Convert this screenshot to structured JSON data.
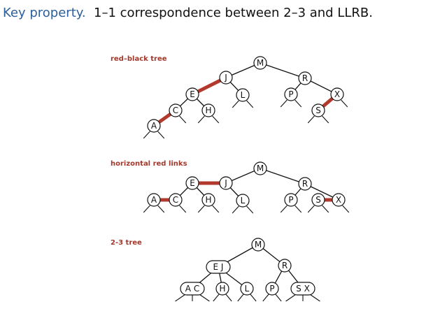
{
  "header": {
    "accent_text": "Key property.",
    "rest_text": "1–1 correspondence between 2–3 and LLRB."
  },
  "diagrams": [
    {
      "id": "red-black-tree",
      "label": "red–black tree",
      "nodes": [
        {
          "id": "M",
          "keys": "M"
        },
        {
          "id": "J",
          "keys": "J"
        },
        {
          "id": "R",
          "keys": "R"
        },
        {
          "id": "E",
          "keys": "E"
        },
        {
          "id": "L",
          "keys": "L"
        },
        {
          "id": "P",
          "keys": "P"
        },
        {
          "id": "X",
          "keys": "X"
        },
        {
          "id": "C",
          "keys": "C"
        },
        {
          "id": "H",
          "keys": "H"
        },
        {
          "id": "S",
          "keys": "S"
        },
        {
          "id": "A",
          "keys": "A"
        }
      ],
      "links": [
        {
          "from": "M",
          "to": "J",
          "color": "black"
        },
        {
          "from": "M",
          "to": "R",
          "color": "black"
        },
        {
          "from": "J",
          "to": "E",
          "color": "red"
        },
        {
          "from": "J",
          "to": "L",
          "color": "black"
        },
        {
          "from": "R",
          "to": "P",
          "color": "black"
        },
        {
          "from": "R",
          "to": "X",
          "color": "black"
        },
        {
          "from": "E",
          "to": "C",
          "color": "black"
        },
        {
          "from": "E",
          "to": "H",
          "color": "black"
        },
        {
          "from": "C",
          "to": "A",
          "color": "red"
        },
        {
          "from": "X",
          "to": "S",
          "color": "red"
        }
      ]
    },
    {
      "id": "horizontal-red-links",
      "label": "horizontal red links",
      "nodes": [
        {
          "id": "M",
          "keys": "M"
        },
        {
          "id": "J",
          "keys": "J"
        },
        {
          "id": "R",
          "keys": "R"
        },
        {
          "id": "E",
          "keys": "E"
        },
        {
          "id": "L",
          "keys": "L"
        },
        {
          "id": "P",
          "keys": "P"
        },
        {
          "id": "S",
          "keys": "S"
        },
        {
          "id": "X",
          "keys": "X"
        },
        {
          "id": "A",
          "keys": "A"
        },
        {
          "id": "C",
          "keys": "C"
        },
        {
          "id": "H",
          "keys": "H"
        }
      ],
      "links": [
        {
          "from": "M",
          "to": "J",
          "color": "black"
        },
        {
          "from": "M",
          "to": "R",
          "color": "black"
        },
        {
          "from": "J",
          "to": "E",
          "color": "red"
        },
        {
          "from": "J",
          "to": "L",
          "color": "black"
        },
        {
          "from": "R",
          "to": "P",
          "color": "black"
        },
        {
          "from": "R",
          "to": "X",
          "color": "black"
        },
        {
          "from": "E",
          "to": "C",
          "color": "black"
        },
        {
          "from": "E",
          "to": "H",
          "color": "black"
        },
        {
          "from": "C",
          "to": "A",
          "color": "red"
        },
        {
          "from": "X",
          "to": "S",
          "color": "red"
        }
      ]
    },
    {
      "id": "two-three-tree",
      "label": "2-3 tree",
      "nodes": [
        {
          "id": "M",
          "keys": "M"
        },
        {
          "id": "EJ",
          "keys": "E J"
        },
        {
          "id": "R",
          "keys": "R"
        },
        {
          "id": "AC",
          "keys": "A C"
        },
        {
          "id": "H",
          "keys": "H"
        },
        {
          "id": "L",
          "keys": "L"
        },
        {
          "id": "P",
          "keys": "P"
        },
        {
          "id": "SX",
          "keys": "S X"
        }
      ],
      "links": [
        {
          "from": "M",
          "to": "EJ",
          "color": "black"
        },
        {
          "from": "M",
          "to": "R",
          "color": "black"
        },
        {
          "from": "EJ",
          "to": "AC",
          "color": "black"
        },
        {
          "from": "EJ",
          "to": "H",
          "color": "black"
        },
        {
          "from": "EJ",
          "to": "L",
          "color": "black"
        },
        {
          "from": "R",
          "to": "P",
          "color": "black"
        },
        {
          "from": "R",
          "to": "SX",
          "color": "black"
        }
      ]
    }
  ],
  "colors": {
    "accent": "#2d5f9a",
    "red_link": "#b23a2c",
    "label": "#a3382b"
  }
}
